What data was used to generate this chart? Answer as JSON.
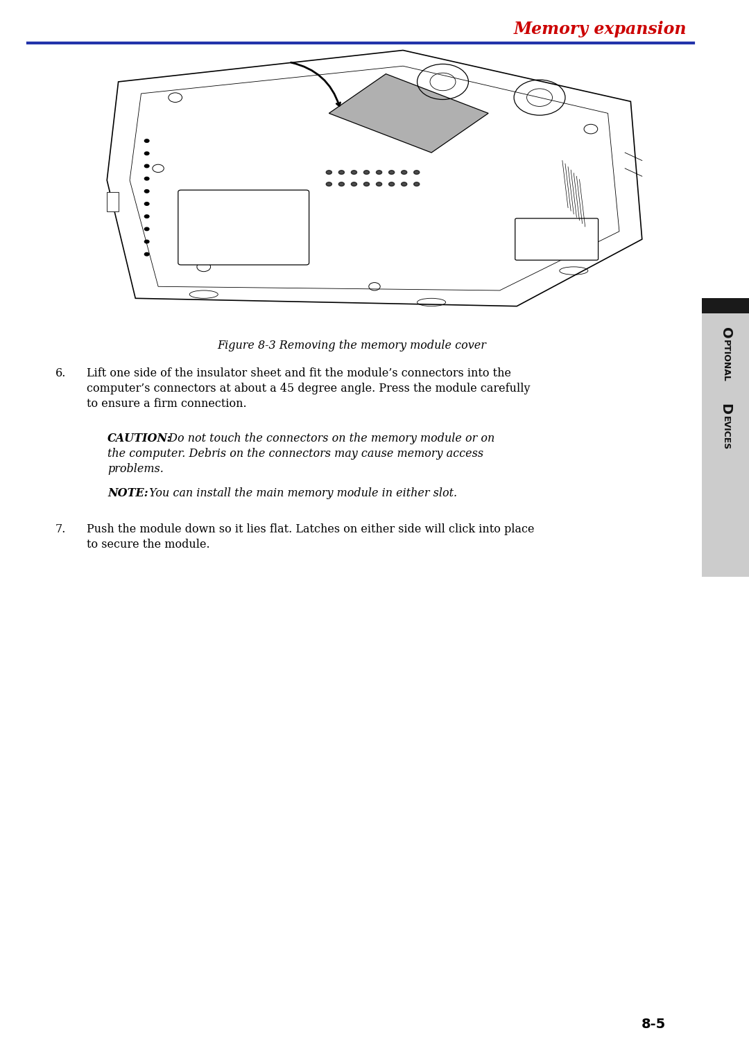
{
  "title": "Memory expansion",
  "title_color": "#cc0000",
  "title_fontsize": 17,
  "title_style": "italic",
  "title_weight": "bold",
  "header_line_color": "#2233aa",
  "figure_caption": "Figure 8-3 Removing the memory module cover",
  "figure_caption_style": "italic",
  "figure_caption_fontsize": 11.5,
  "sidebar_bg_top": "#1a1a1a",
  "sidebar_bg_bottom": "#cccccc",
  "sidebar_text_color": "#000000",
  "page_number": "8-5",
  "page_number_fontsize": 14,
  "page_number_weight": "bold",
  "body_fontsize": 11.5,
  "para6_label": "6.",
  "para6_lines": [
    "Lift one side of the insulator sheet and fit the module’s connectors into the",
    "computer’s connectors at about a 45 degree angle. Press the module carefully",
    "to ensure a firm connection."
  ],
  "caution_label": "CAUTION:",
  "caution_rest_line1": " Do not touch the connectors on the memory module or on",
  "caution_line2": "the computer. Debris on the connectors may cause memory access",
  "caution_line3": "problems.",
  "note_label": "NOTE:",
  "note_rest": " You can install the main memory module in either slot.",
  "para7_label": "7.",
  "para7_lines": [
    "Push the module down so it lies flat. Latches on either side will click into place",
    "to secure the module."
  ],
  "bg_color": "#ffffff"
}
